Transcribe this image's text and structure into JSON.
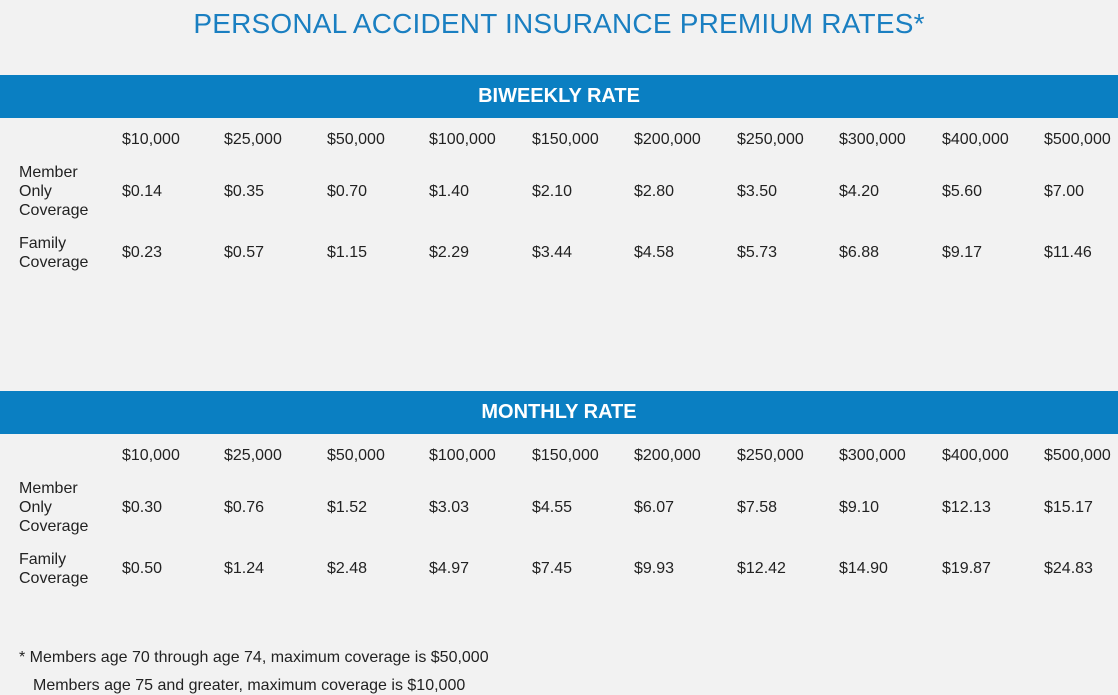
{
  "page": {
    "title": "PERSONAL ACCIDENT INSURANCE PREMIUM RATES*"
  },
  "colors": {
    "title": "#1a7fc1",
    "band": "#0a7fc2",
    "background": "#f2f2f2"
  },
  "coverage_amounts": [
    "$10,000",
    "$25,000",
    "$50,000",
    "$100,000",
    "$150,000",
    "$200,000",
    "$250,000",
    "$300,000",
    "$400,000",
    "$500,000"
  ],
  "biweekly": {
    "heading": "BIWEEKLY RATE",
    "rows": [
      {
        "label_lines": [
          "Member",
          "Only",
          "Coverage"
        ],
        "values": [
          "$0.14",
          "$0.35",
          "$0.70",
          "$1.40",
          "$2.10",
          "$2.80",
          "$3.50",
          "$4.20",
          "$5.60",
          "$7.00"
        ]
      },
      {
        "label_lines": [
          "Family",
          "Coverage"
        ],
        "values": [
          "$0.23",
          "$0.57",
          "$1.15",
          "$2.29",
          "$3.44",
          "$4.58",
          "$5.73",
          "$6.88",
          "$9.17",
          "$11.46"
        ]
      }
    ]
  },
  "monthly": {
    "heading": "MONTHLY RATE",
    "rows": [
      {
        "label_lines": [
          "Member",
          "Only",
          "Coverage"
        ],
        "values": [
          "$0.30",
          "$0.76",
          "$1.52",
          "$3.03",
          "$4.55",
          "$6.07",
          "$7.58",
          "$9.10",
          "$12.13",
          "$15.17"
        ]
      },
      {
        "label_lines": [
          "Family",
          "Coverage"
        ],
        "values": [
          "$0.50",
          "$1.24",
          "$2.48",
          "$4.97",
          "$7.45",
          "$9.93",
          "$12.42",
          "$14.90",
          "$19.87",
          "$24.83"
        ]
      }
    ]
  },
  "footnotes": {
    "line1": "* Members age 70 through age 74, maximum coverage is $50,000",
    "line2": "Members age 75 and greater, maximum coverage is $10,000"
  }
}
